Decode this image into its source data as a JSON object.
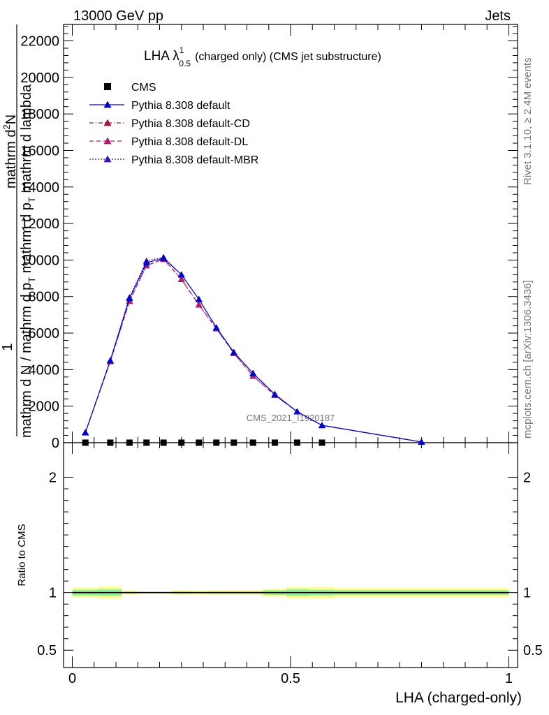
{
  "header": {
    "left": "13000 GeV pp",
    "right": "Jets"
  },
  "side_labels": {
    "rivet": "Rivet 3.1.10, ≥ 2.4M events",
    "mcplots": "mcplots.cern.ch [arXiv:1306.3436]"
  },
  "plot_title": {
    "main": "LHA λ",
    "sup": "1",
    "sub": "0.5",
    "rest": "(charged only) (CMS jet substructure)"
  },
  "watermark": "CMS_2021_I1920187",
  "ylabel_top": {
    "one": "1",
    "numerator": "mathrm d",
    "numerator_sup": "2",
    "numerator_end": "N",
    "denominator": "mathrm d N / mathrm d p",
    "denominator_sub": "T",
    "denominator_end": " mathrm d p",
    "denominator_sub2": "T",
    "denominator_tail": " mathrm d lambda"
  },
  "ylabel_ratio": "Ratio to CMS",
  "xlabel": "LHA (charged-only)",
  "legend": [
    {
      "label": "CMS",
      "color": "#000000",
      "marker": "square",
      "dash": "none"
    },
    {
      "label": "Pythia 8.308 default",
      "color": "#0000cc",
      "marker": "triangle",
      "dash": "solid"
    },
    {
      "label": "Pythia 8.308 default-CD",
      "color": "#a8163a",
      "marker": "triangle",
      "dash": "dashdot"
    },
    {
      "label": "Pythia 8.308 default-DL",
      "color": "#b0186a",
      "marker": "triangle",
      "dash": "dashed"
    },
    {
      "label": "Pythia 8.308 default-MBR",
      "color": "#3a14b0",
      "marker": "triangle",
      "dash": "dotted"
    }
  ],
  "chart_data": {
    "type": "line",
    "x_axis": {
      "range": [
        -0.02,
        1.02
      ],
      "ticks": [
        0,
        0.5,
        1
      ],
      "tick_labels": [
        "0",
        "0.5",
        "1"
      ]
    },
    "main_y_axis": {
      "range": [
        0,
        22900
      ],
      "ticks": [
        0,
        2000,
        4000,
        6000,
        8000,
        10000,
        12000,
        14000,
        16000,
        18000,
        20000,
        22000
      ],
      "tick_labels": [
        "0",
        "2000",
        "4000",
        "6000",
        "8000",
        "10000",
        "12000",
        "14000",
        "16000",
        "18000",
        "20000",
        "22000"
      ]
    },
    "ratio_y_axis": {
      "range": [
        0.35,
        2.3
      ],
      "ticks": [
        0.5,
        1,
        2
      ],
      "tick_labels": [
        "0.5",
        "1",
        "2"
      ]
    },
    "x": [
      0.03,
      0.087,
      0.131,
      0.17,
      0.209,
      0.25,
      0.29,
      0.33,
      0.37,
      0.414,
      0.464,
      0.515,
      0.572,
      0.8
    ],
    "cms": [
      0.99,
      0.99,
      1.0,
      0.99,
      1.0,
      0.99,
      0.99,
      1.0,
      0.99,
      1.0,
      1.0,
      1.0,
      1.0,
      null
    ],
    "series": [
      {
        "name": "Pythia 8.308 default",
        "values": [
          550,
          4500,
          7900,
          9850,
          10100,
          9200,
          7850,
          6300,
          4950,
          3800,
          2650,
          1700,
          950,
          40
        ]
      },
      {
        "name": "Pythia 8.308 default-CD",
        "values": [
          560,
          4450,
          7750,
          9700,
          10050,
          8950,
          7550,
          6250,
          4900,
          3650,
          2600,
          1700,
          950,
          40
        ]
      },
      {
        "name": "Pythia 8.308 default-DL",
        "values": [
          560,
          4450,
          7750,
          9700,
          10050,
          8950,
          7550,
          6250,
          4900,
          3650,
          2600,
          1700,
          950,
          40
        ]
      },
      {
        "name": "Pythia 8.308 default-MBR",
        "values": [
          570,
          4500,
          7950,
          9950,
          10150,
          9200,
          7850,
          6300,
          4950,
          3800,
          2650,
          1700,
          950,
          40
        ]
      }
    ],
    "ratio_bands": {
      "bin_edges": [
        0.0,
        0.06,
        0.113,
        0.15,
        0.19,
        0.23,
        0.27,
        0.31,
        0.35,
        0.39,
        0.437,
        0.49,
        0.54,
        0.6,
        1.0
      ],
      "yellow": [
        0.045,
        0.055,
        0.015,
        0.01,
        0.01,
        0.02,
        0.015,
        0.02,
        0.02,
        0.02,
        0.035,
        0.05,
        0.05,
        0.04
      ],
      "green": [
        0.025,
        0.03,
        0.008,
        0.005,
        0.005,
        0.01,
        0.008,
        0.01,
        0.01,
        0.01,
        0.02,
        0.03,
        0.025,
        0.02
      ]
    },
    "grid": false,
    "legend_position": "top-left"
  }
}
